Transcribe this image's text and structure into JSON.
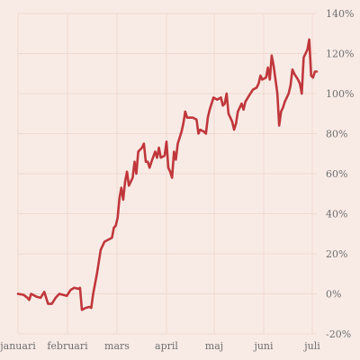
{
  "chart_data": {
    "type": "line",
    "title": "",
    "xlabel": "",
    "ylabel": "",
    "x_ticks": [
      "januari",
      "februari",
      "mars",
      "april",
      "maj",
      "juni",
      "juli"
    ],
    "y_ticks": [
      "140%",
      "120%",
      "100%",
      "80%",
      "60%",
      "40%",
      "20%",
      "0%",
      "-20%"
    ],
    "ylim": [
      -20,
      140
    ],
    "y_unit": "%",
    "grid": true,
    "line_color": "#c0373b",
    "series": [
      {
        "values": [
          [
            1,
            0
          ],
          [
            4,
            -0.5
          ],
          [
            6,
            -2
          ],
          [
            7,
            -3
          ],
          [
            8,
            0
          ],
          [
            11,
            -1.5
          ],
          [
            13,
            -2
          ],
          [
            15,
            1
          ],
          [
            17,
            -5
          ],
          [
            19,
            -5
          ],
          [
            21,
            -2
          ],
          [
            23,
            0
          ],
          [
            25,
            -0.5
          ],
          [
            27,
            -1
          ],
          [
            29,
            2
          ],
          [
            31,
            3
          ],
          [
            33,
            2.5
          ],
          [
            34,
            3
          ],
          [
            35,
            -8
          ],
          [
            37,
            -7
          ],
          [
            39,
            -6.5
          ],
          [
            40,
            -7
          ],
          [
            41,
            0
          ],
          [
            43,
            10
          ],
          [
            45,
            22
          ],
          [
            47,
            26
          ],
          [
            49,
            27
          ],
          [
            51,
            28
          ],
          [
            52,
            33
          ],
          [
            53,
            34
          ],
          [
            54,
            38
          ],
          [
            55,
            48
          ],
          [
            56,
            53
          ],
          [
            57,
            47
          ],
          [
            58,
            56
          ],
          [
            59,
            61
          ],
          [
            60,
            54
          ],
          [
            62,
            58
          ],
          [
            63,
            66
          ],
          [
            64,
            60
          ],
          [
            65,
            71
          ],
          [
            67,
            73
          ],
          [
            68,
            75
          ],
          [
            69,
            66
          ],
          [
            70,
            66
          ],
          [
            71,
            63
          ],
          [
            72,
            66
          ],
          [
            74,
            71
          ],
          [
            75,
            68
          ],
          [
            76,
            73
          ],
          [
            77,
            68
          ],
          [
            79,
            69
          ],
          [
            80,
            76
          ],
          [
            81,
            63
          ],
          [
            82,
            61
          ],
          [
            83,
            58
          ],
          [
            84,
            71
          ],
          [
            85,
            67
          ],
          [
            86,
            75
          ],
          [
            88,
            81
          ],
          [
            89,
            85
          ],
          [
            90,
            91
          ],
          [
            91,
            88
          ],
          [
            94,
            88
          ],
          [
            96,
            87
          ],
          [
            97,
            80
          ],
          [
            98,
            82
          ],
          [
            100,
            81
          ],
          [
            101,
            80
          ],
          [
            102,
            88
          ],
          [
            103,
            92
          ],
          [
            105,
            98
          ],
          [
            107,
            97
          ],
          [
            109,
            98
          ],
          [
            110,
            94
          ],
          [
            111,
            95
          ],
          [
            112,
            100
          ],
          [
            113,
            90
          ],
          [
            115,
            86
          ],
          [
            116,
            82
          ],
          [
            117,
            85
          ],
          [
            118,
            91
          ],
          [
            120,
            95
          ],
          [
            121,
            92
          ],
          [
            122,
            96
          ],
          [
            124,
            99
          ],
          [
            126,
            102
          ],
          [
            128,
            103
          ],
          [
            129,
            105
          ],
          [
            130,
            109
          ],
          [
            131,
            107
          ],
          [
            133,
            108
          ],
          [
            134,
            113
          ],
          [
            135,
            107
          ],
          [
            136,
            119
          ],
          [
            137,
            114
          ],
          [
            138,
            107
          ],
          [
            139,
            100
          ],
          [
            140,
            84
          ],
          [
            141,
            91
          ],
          [
            142,
            93
          ],
          [
            143,
            96
          ],
          [
            145,
            100
          ],
          [
            146,
            104
          ],
          [
            147,
            112
          ],
          [
            148,
            110
          ],
          [
            150,
            107
          ],
          [
            151,
            105
          ],
          [
            152,
            100
          ],
          [
            153,
            118
          ],
          [
            155,
            122
          ],
          [
            156,
            127
          ],
          [
            157,
            109
          ],
          [
            158,
            108
          ],
          [
            159,
            111
          ],
          [
            160,
            111
          ]
        ]
      }
    ]
  }
}
